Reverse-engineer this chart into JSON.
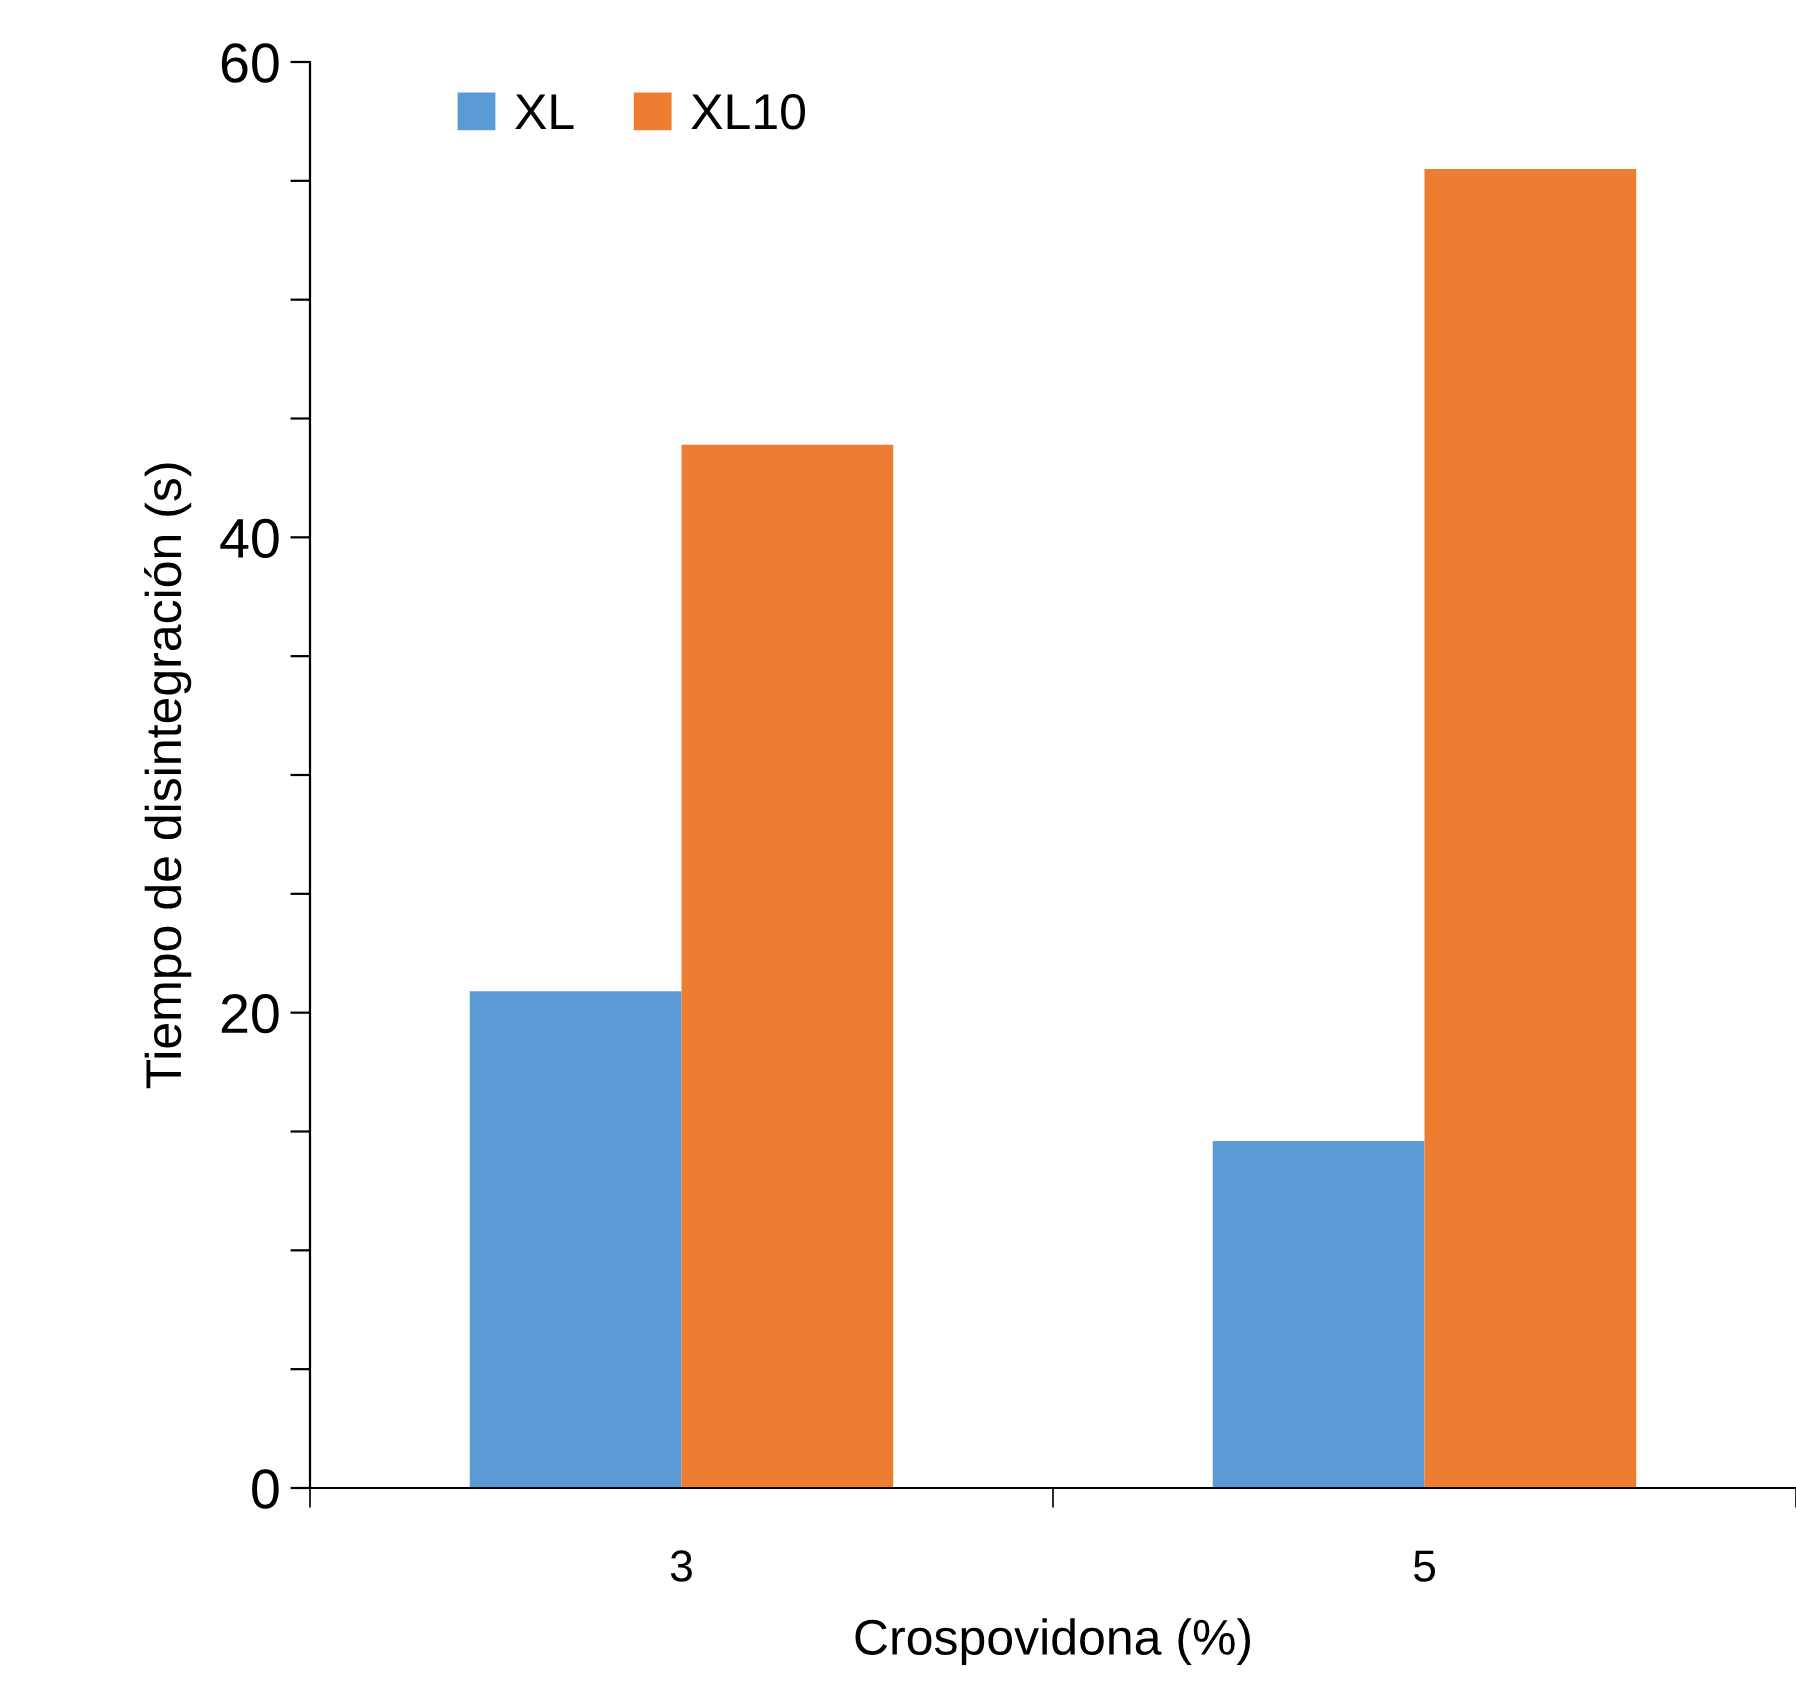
{
  "chart_data": {
    "type": "bar",
    "xlabel": "Crospovidona (%)",
    "ylabel": "Tiempo de disintegración (s)",
    "categories": [
      "3",
      "5"
    ],
    "series": [
      {
        "name": "XL",
        "color": "#5b9bd5",
        "values": [
          20.9,
          14.6
        ]
      },
      {
        "name": "XL10",
        "color": "#ed7d31",
        "values": [
          43.9,
          55.5
        ]
      }
    ],
    "ylim": [
      0,
      60
    ],
    "yticks": [
      0,
      {
        "value": 5,
        "label": null
      },
      {
        "value": 10,
        "label": null
      },
      {
        "value": 15,
        "label": null
      },
      20,
      {
        "value": 25,
        "label": null
      },
      {
        "value": 30,
        "label": null
      },
      {
        "value": 35,
        "label": null
      },
      40,
      {
        "value": 45,
        "label": null
      },
      {
        "value": 50,
        "label": null
      },
      {
        "value": 55,
        "label": null
      },
      60
    ],
    "grid": false,
    "legend": "top"
  }
}
